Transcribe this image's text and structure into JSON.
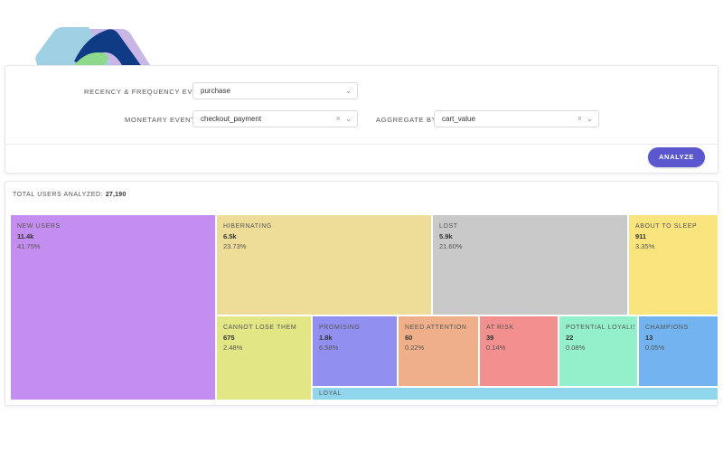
{
  "logo": {
    "colors": [
      "#9fd0e4",
      "#0f3a84",
      "#c8b6e6",
      "#8fd98c"
    ]
  },
  "filters": {
    "recency_label": "RECENCY & FREQUENCY EVENT",
    "recency_value": "purchase",
    "monetary_label": "MONETARY EVENT",
    "monetary_value": "checkout_payment",
    "aggregate_label": "AGGREGATE BY",
    "aggregate_value": "cart_value",
    "clear_glyph": "×",
    "chevron_glyph": "⌄"
  },
  "analyze_label": "ANALYZE",
  "results": {
    "total_label": "TOTAL USERS ANALYZED:",
    "total_value": "27,190"
  },
  "segments": [
    {
      "name": "NEW USERS",
      "count": "11.4k",
      "pct": "41.75%",
      "color": "#c48ef0"
    },
    {
      "name": "HIBERNATING",
      "count": "6.5k",
      "pct": "23.73%",
      "color": "#eedd98"
    },
    {
      "name": "LOST",
      "count": "5.9k",
      "pct": "21.60%",
      "color": "#c9c9c9"
    },
    {
      "name": "ABOUT TO SLEEP",
      "count": "911",
      "pct": "3.35%",
      "color": "#f9e47e"
    },
    {
      "name": "CANNOT LOSE THEM",
      "count": "675",
      "pct": "2.48%",
      "color": "#e2e684"
    },
    {
      "name": "PROMISING",
      "count": "1.8k",
      "pct": "6.58%",
      "color": "#918ff0"
    },
    {
      "name": "NEED ATTENTION",
      "count": "60",
      "pct": "0.22%",
      "color": "#efaf8a"
    },
    {
      "name": "AT RISK",
      "count": "39",
      "pct": "0.14%",
      "color": "#f28f8f"
    },
    {
      "name": "POTENTIAL LOYALIS...",
      "count": "22",
      "pct": "0.08%",
      "color": "#93f0ca"
    },
    {
      "name": "CHAMPIONS",
      "count": "13",
      "pct": "0.05%",
      "color": "#72b3f0"
    },
    {
      "name": "LOYAL",
      "count": "",
      "pct": "",
      "color": "#8fd5ec"
    }
  ]
}
